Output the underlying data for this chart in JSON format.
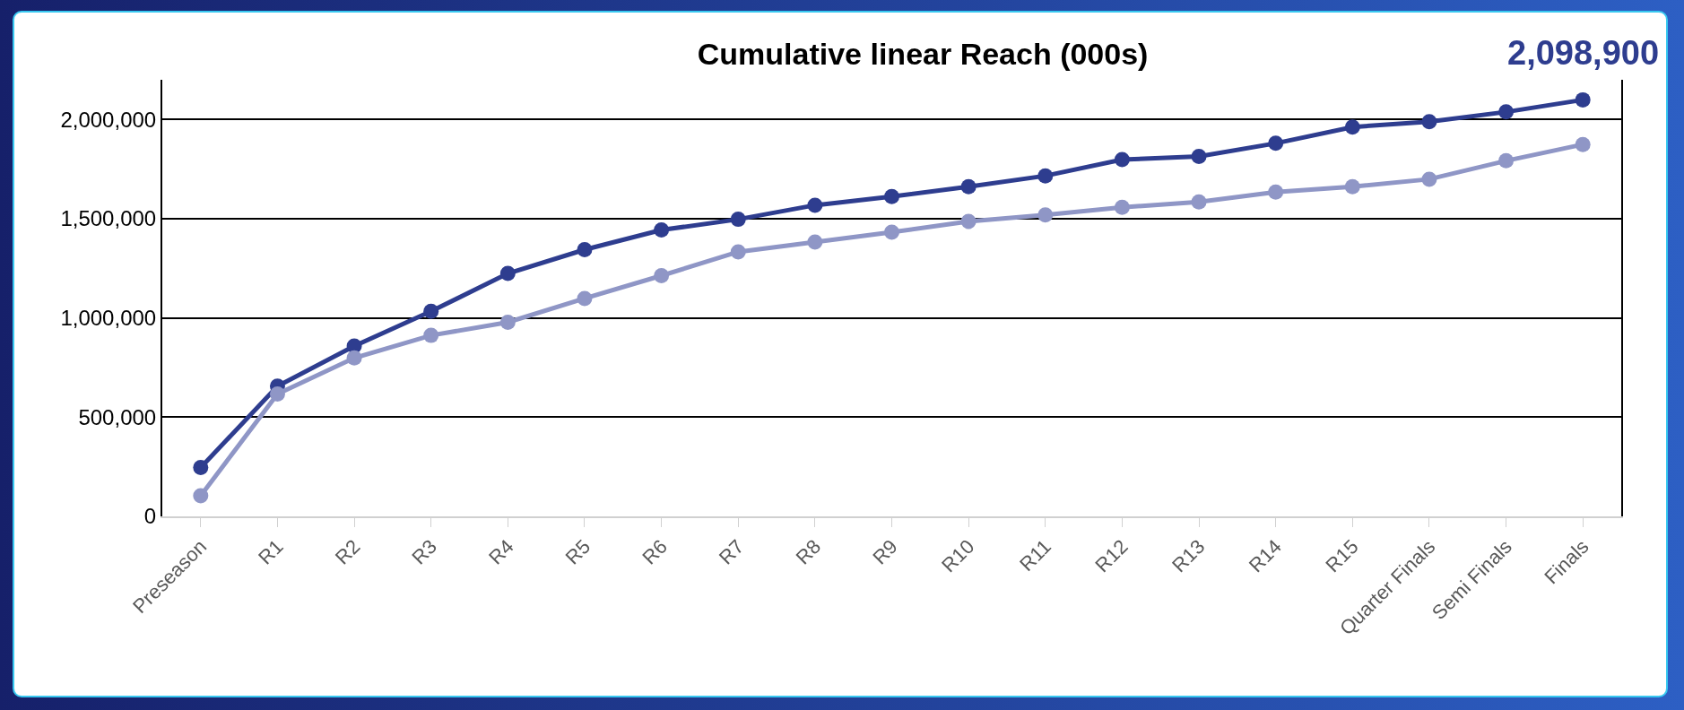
{
  "chart_data": {
    "type": "line",
    "title": "Cumulative linear Reach (000s)",
    "categories": [
      "Preseason",
      "R1",
      "R2",
      "R3",
      "R4",
      "R5",
      "R6",
      "R7",
      "R8",
      "R9",
      "R10",
      "R11",
      "R12",
      "R13",
      "R14",
      "R15",
      "Quarter Finals",
      "Semi Finals",
      "Finals"
    ],
    "series": [
      {
        "color": "#2e3d8f",
        "values": [
          246000,
          656000,
          858000,
          1033000,
          1224000,
          1344000,
          1443000,
          1497000,
          1568000,
          1612000,
          1661000,
          1716000,
          1798000,
          1814000,
          1880000,
          1962000,
          1989000,
          2038000,
          2098900
        ]
      },
      {
        "color": "#8f96c6",
        "values": [
          104000,
          617000,
          798000,
          912000,
          978000,
          1098000,
          1213000,
          1333000,
          1382000,
          1432000,
          1486000,
          1519000,
          1557000,
          1585000,
          1634000,
          1661000,
          1699000,
          1792000,
          1874000
        ]
      }
    ],
    "ylim": [
      0,
      2200000
    ],
    "yticks": [
      {
        "value": 0,
        "label": "0"
      },
      {
        "value": 500000,
        "label": "500,000"
      },
      {
        "value": 1000000,
        "label": "1,000,000"
      },
      {
        "value": 1500000,
        "label": "1,500,000"
      },
      {
        "value": 2000000,
        "label": "2,000,000"
      }
    ],
    "grid": "y",
    "marker": "circle",
    "line_style": "solid",
    "annotations": [
      {
        "text": "2,098,900",
        "x": "Finals",
        "y": 2098900
      }
    ]
  }
}
